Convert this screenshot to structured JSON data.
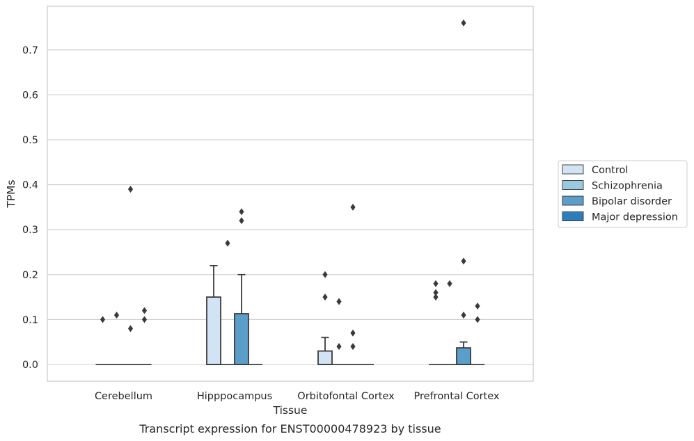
{
  "caption": "Transcript expression for ENST00000478923 by tissue",
  "chart_data": {
    "type": "box",
    "xlabel": "Tissue",
    "ylabel": "TPMs",
    "ylim": [
      -0.036,
      0.795
    ],
    "yticks": [
      0.0,
      0.1,
      0.2,
      0.3,
      0.4,
      0.5,
      0.6,
      0.7
    ],
    "ytick_labels": [
      "0.0",
      "0.1",
      "0.2",
      "0.3",
      "0.4",
      "0.5",
      "0.6",
      "0.7"
    ],
    "grid": true,
    "legend_position": "right",
    "categories": [
      "Cerebellum",
      "Hipppocampus",
      "Orbitofontal Cortex",
      "Prefrontal Cortex"
    ],
    "series": [
      {
        "name": "Control",
        "color": "#d2e3f3",
        "boxes": [
          {
            "q1": 0.0,
            "median": 0.0,
            "q3": 0.0,
            "whislo": 0.0,
            "whishi": 0.0,
            "fliers": [
              0.1
            ]
          },
          {
            "q1": 0.0,
            "median": 0.0,
            "q3": 0.15,
            "whislo": 0.0,
            "whishi": 0.22,
            "fliers": []
          },
          {
            "q1": 0.0,
            "median": 0.0,
            "q3": 0.03,
            "whislo": 0.0,
            "whishi": 0.06,
            "fliers": [
              0.2,
              0.15
            ]
          },
          {
            "q1": 0.0,
            "median": 0.0,
            "q3": 0.0,
            "whislo": 0.0,
            "whishi": 0.0,
            "fliers": [
              0.18,
              0.16,
              0.15
            ]
          }
        ]
      },
      {
        "name": "Schizophrenia",
        "color": "#9ac8e0",
        "boxes": [
          {
            "q1": 0.0,
            "median": 0.0,
            "q3": 0.0,
            "whislo": 0.0,
            "whishi": 0.0,
            "fliers": [
              0.11
            ]
          },
          {
            "q1": 0.0,
            "median": 0.0,
            "q3": 0.0,
            "whislo": 0.0,
            "whishi": 0.0,
            "fliers": [
              0.27
            ]
          },
          {
            "q1": 0.0,
            "median": 0.0,
            "q3": 0.0,
            "whislo": 0.0,
            "whishi": 0.0,
            "fliers": [
              0.04,
              0.14
            ]
          },
          {
            "q1": 0.0,
            "median": 0.0,
            "q3": 0.0,
            "whislo": 0.0,
            "whishi": 0.0,
            "fliers": [
              0.18
            ]
          }
        ]
      },
      {
        "name": "Bipolar disorder",
        "color": "#5a9ec9",
        "boxes": [
          {
            "q1": 0.0,
            "median": 0.0,
            "q3": 0.0,
            "whislo": 0.0,
            "whishi": 0.0,
            "fliers": [
              0.39,
              0.08
            ]
          },
          {
            "q1": 0.0,
            "median": 0.0,
            "q3": 0.113,
            "whislo": 0.0,
            "whishi": 0.2,
            "fliers": [
              0.34,
              0.32
            ]
          },
          {
            "q1": 0.0,
            "median": 0.0,
            "q3": 0.0,
            "whislo": 0.0,
            "whishi": 0.0,
            "fliers": [
              0.35,
              0.07,
              0.04
            ]
          },
          {
            "q1": 0.0,
            "median": 0.0,
            "q3": 0.037,
            "whislo": 0.0,
            "whishi": 0.05,
            "fliers": [
              0.76,
              0.23,
              0.11
            ]
          }
        ]
      },
      {
        "name": "Major depression",
        "color": "#2d7dbb",
        "boxes": [
          {
            "q1": 0.0,
            "median": 0.0,
            "q3": 0.0,
            "whislo": 0.0,
            "whishi": 0.0,
            "fliers": [
              0.12,
              0.1
            ]
          },
          {
            "q1": 0.0,
            "median": 0.0,
            "q3": 0.0,
            "whislo": 0.0,
            "whishi": 0.0,
            "fliers": []
          },
          {
            "q1": 0.0,
            "median": 0.0,
            "q3": 0.0,
            "whislo": 0.0,
            "whishi": 0.0,
            "fliers": []
          },
          {
            "q1": 0.0,
            "median": 0.0,
            "q3": 0.0,
            "whislo": 0.0,
            "whishi": 0.0,
            "fliers": [
              0.13,
              0.1
            ]
          }
        ]
      }
    ]
  }
}
